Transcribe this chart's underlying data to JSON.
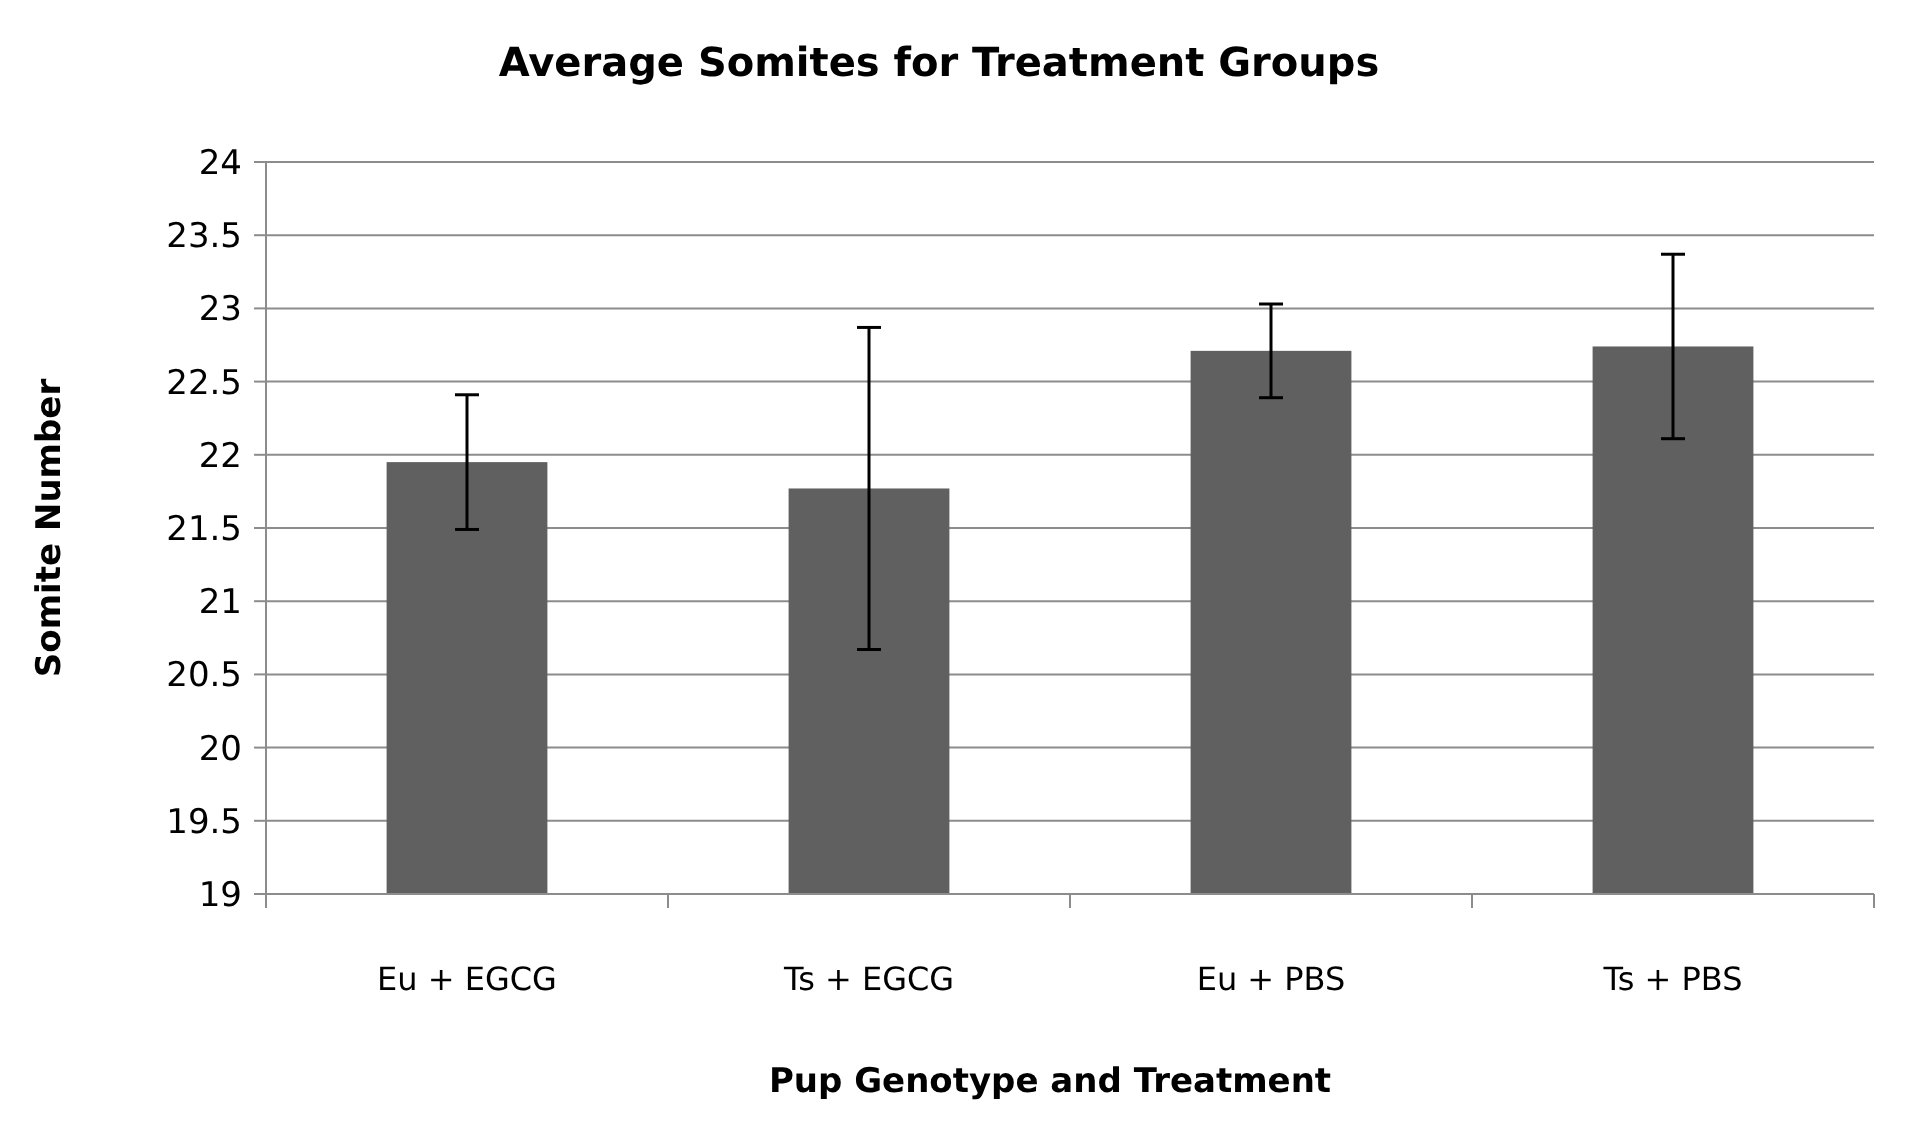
{
  "chart_data": {
    "type": "bar",
    "title": "Average Somites for Treatment Groups",
    "xlabel": "Pup Genotype and Treatment",
    "ylabel": "Somite Number",
    "categories": [
      "Eu + EGCG",
      "Ts + EGCG",
      "Eu + PBS",
      "Ts + PBS"
    ],
    "values": [
      21.95,
      21.77,
      22.71,
      22.74
    ],
    "color": "#606060",
    "errors": [
      0.46,
      1.1,
      0.32,
      0.63
    ],
    "ylim": [
      19,
      24
    ],
    "yticks": [
      19,
      19.5,
      20,
      20.5,
      21,
      21.5,
      22,
      22.5,
      23,
      23.5,
      24
    ],
    "grid": "y"
  }
}
